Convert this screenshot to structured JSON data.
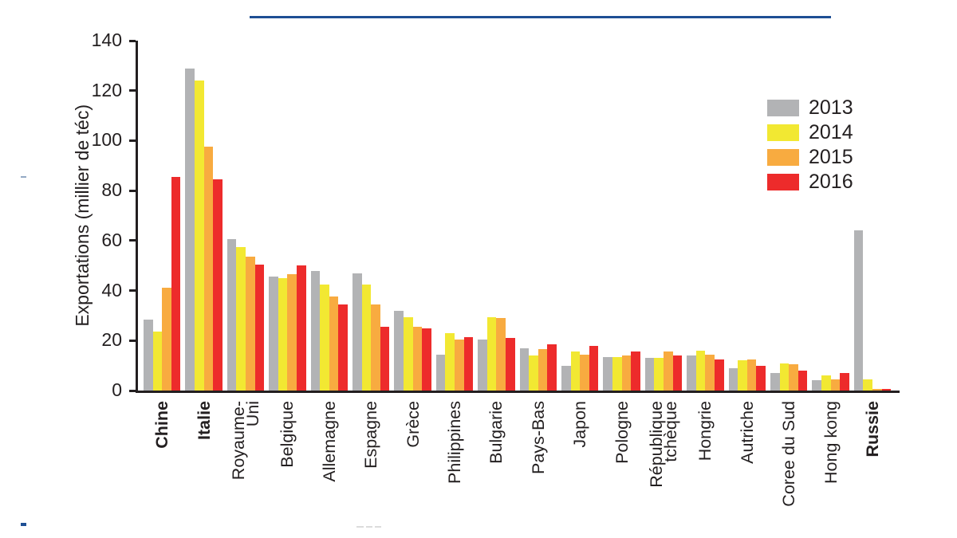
{
  "palette": {
    "series_2013": "#b2b3b5",
    "series_2014": "#f2e832",
    "series_2015": "#f8ab40",
    "series_2016": "#ed2b2b",
    "axis_and_text": "#231f20",
    "top_rule_blue": "#1e4f94"
  },
  "decorations": {
    "top_rule": true,
    "small_blue_dash_bottom_left": true,
    "small_gray_dash_mid_left": true
  },
  "chart_data": {
    "type": "bar",
    "title": "",
    "xlabel": "",
    "ylabel": "Exportations (millier de téc)",
    "ylim": [
      0,
      140
    ],
    "ytick_step": 20,
    "ytick_labels": [
      "0",
      "20",
      "40",
      "60",
      "80",
      "100",
      "120",
      "140"
    ],
    "grid": false,
    "legend_position": "upper right",
    "categories": [
      "Chine",
      "Italie",
      "Royaume-\nUni",
      "Belgique",
      "Allemagne",
      "Espagne",
      "Grèce",
      "Philippines",
      "Bulgarie",
      "Pays-Bas",
      "Japon",
      "Pologne",
      "République\ntchèque",
      "Hongrie",
      "Autriche",
      "Coree du Sud",
      "Hong kong",
      "Russie"
    ],
    "bold_category_indices": [
      0,
      1,
      17
    ],
    "series": [
      {
        "name": "2013",
        "color": "#b2b3b5",
        "values": [
          28.5,
          129,
          60.5,
          45.5,
          48,
          47,
          32,
          14.5,
          20.5,
          17,
          10,
          13.5,
          13,
          14,
          9,
          7,
          4,
          64
        ]
      },
      {
        "name": "2014",
        "color": "#f2e832",
        "values": [
          23.5,
          124,
          57.5,
          45,
          42.5,
          42.5,
          29.5,
          23,
          29.5,
          14,
          15.5,
          13.5,
          13,
          16,
          12,
          11,
          6,
          4.5
        ]
      },
      {
        "name": "2015",
        "color": "#f8ab40",
        "values": [
          41,
          97.5,
          53.5,
          46.5,
          37.5,
          34.5,
          25.5,
          20.5,
          29,
          16.5,
          14.5,
          14,
          15.5,
          14.5,
          12.5,
          10.5,
          4.5,
          0.5
        ]
      },
      {
        "name": "2016",
        "color": "#ed2b2b",
        "values": [
          85.5,
          84.5,
          50.5,
          50,
          34.5,
          25.5,
          25,
          21.5,
          21,
          18.5,
          18,
          15.5,
          14,
          12.5,
          10,
          8,
          7,
          0.5
        ]
      }
    ]
  }
}
